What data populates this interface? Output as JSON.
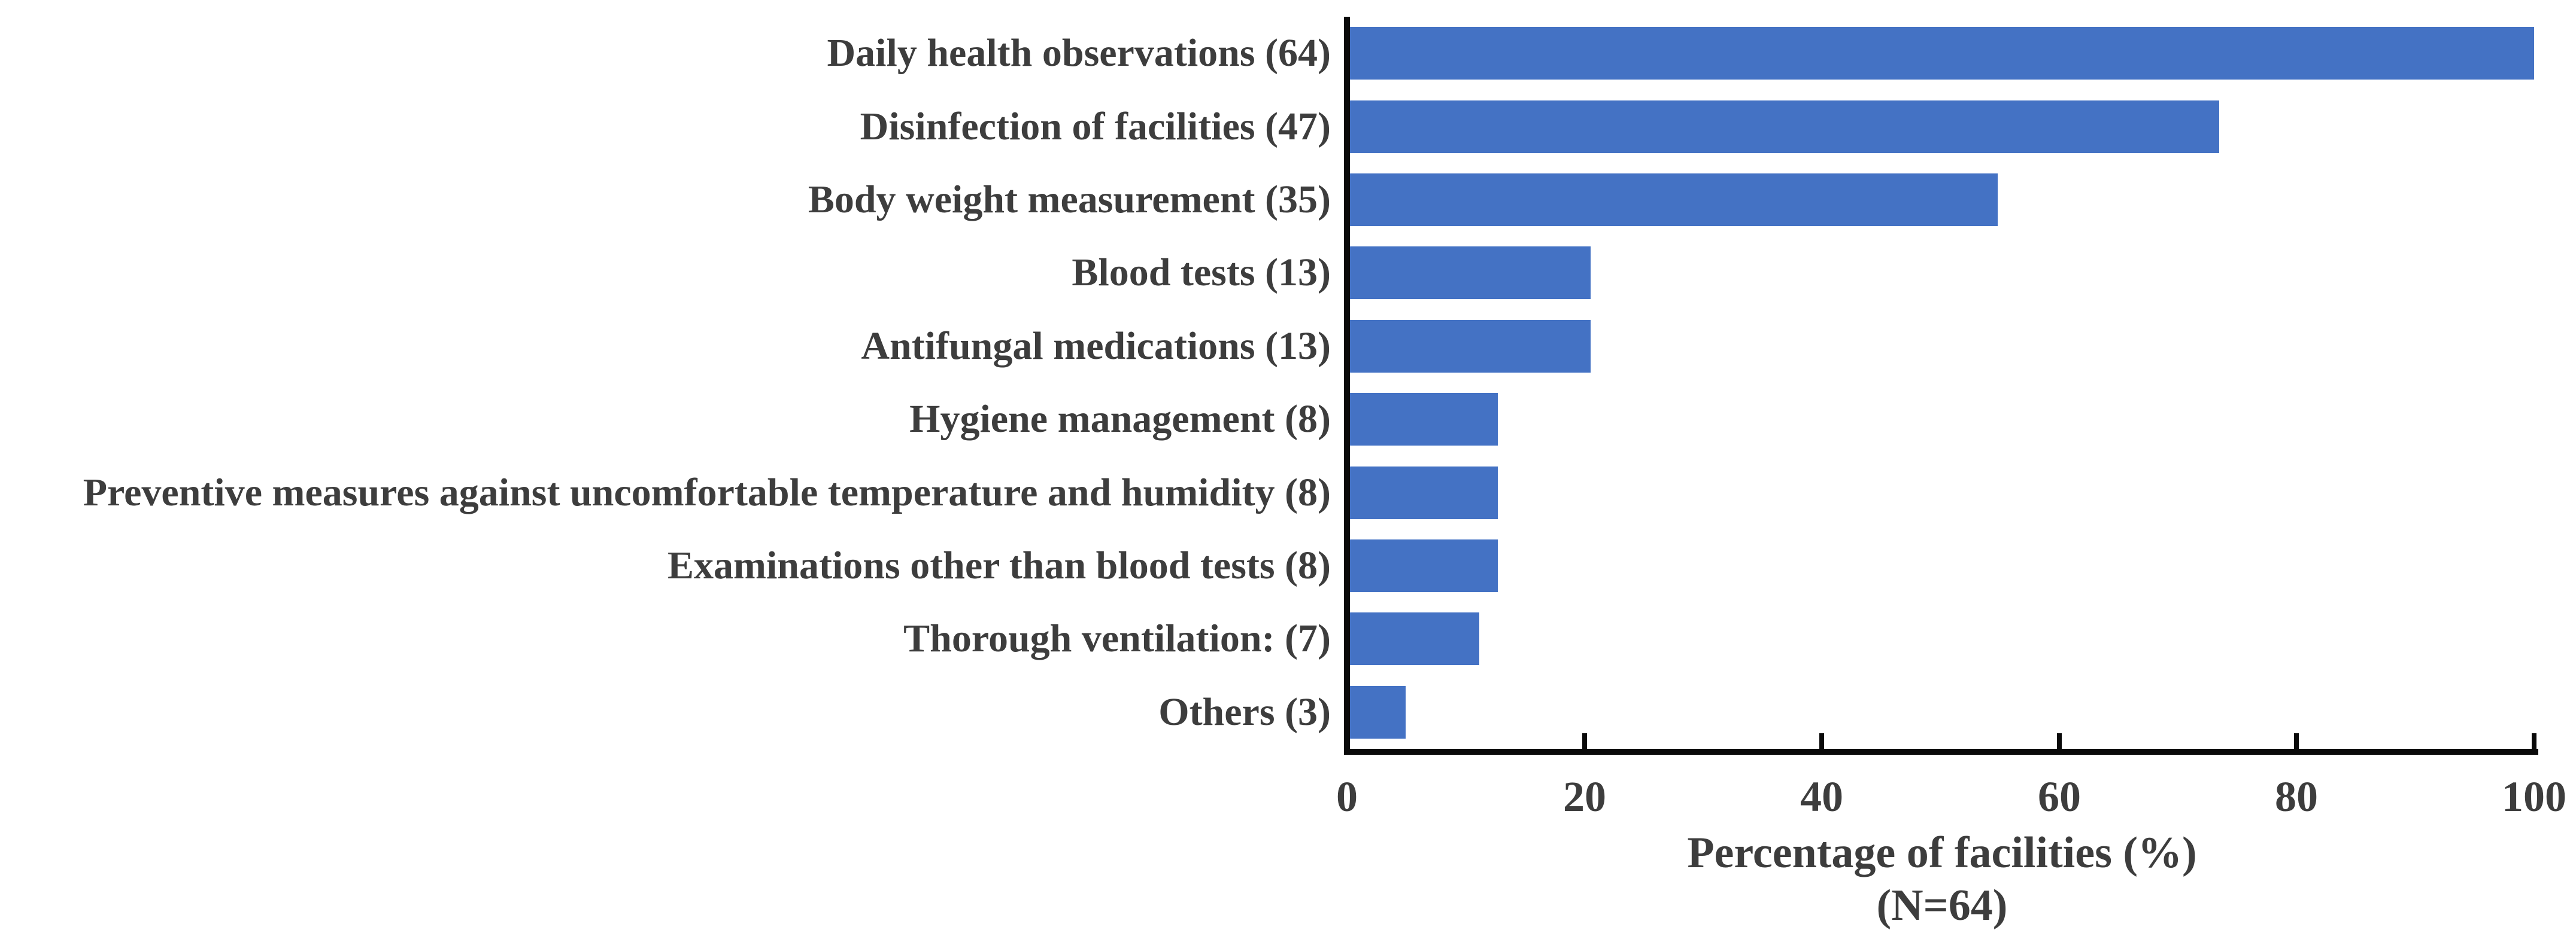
{
  "chart_data": {
    "type": "bar",
    "orientation": "horizontal",
    "title": "",
    "categories": [
      "Daily health observations (64)",
      "Disinfection of facilities (47)",
      "Body weight measurement (35)",
      "Blood tests (13)",
      "Antifungal medications (13)",
      "Hygiene management (8)",
      "Preventive measures against uncomfortable temperature and humidity (8)",
      "Examinations other than blood tests (8)",
      "Thorough ventilation: (7)",
      "Others (3)"
    ],
    "counts": [
      64,
      47,
      35,
      13,
      13,
      8,
      8,
      8,
      7,
      3
    ],
    "values": [
      100,
      73.4,
      54.7,
      20.3,
      20.3,
      12.5,
      12.5,
      12.5,
      10.9,
      4.7
    ],
    "x_ticks": [
      "0",
      "20",
      "40",
      "60",
      "80",
      "100"
    ],
    "xlim": [
      0,
      100
    ],
    "grid": false,
    "legend": "none",
    "xlabel_line1": "Percentage of facilities (%)",
    "xlabel_line2": "(N=64)",
    "bar_color": "#4472C4",
    "axis_color": "#0a0a0a",
    "text_color": "#3d3d3d"
  }
}
